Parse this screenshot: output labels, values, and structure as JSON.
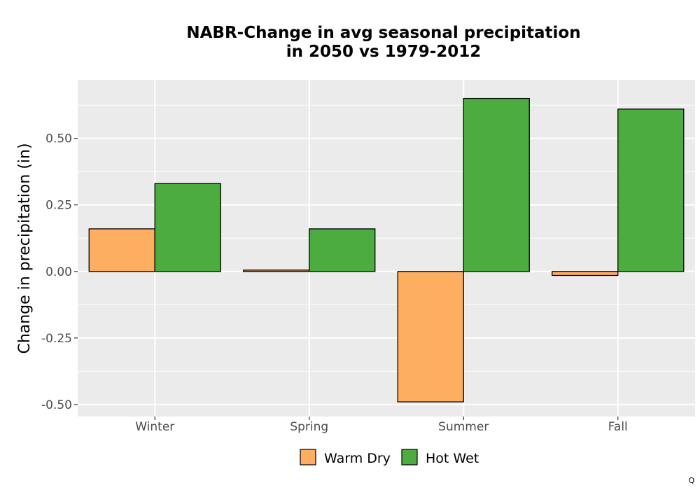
{
  "chart_data": {
    "type": "bar",
    "title_lines": [
      "NABR-Change in avg seasonal precipitation",
      "in 2050 vs 1979-2012"
    ],
    "xlabel": "",
    "ylabel": "Change in precipitation (in)",
    "categories": [
      "Winter",
      "Spring",
      "Summer",
      "Fall"
    ],
    "series": [
      {
        "name": "Warm Dry",
        "color": "#FDAE61",
        "values": [
          0.16,
          0.005,
          -0.49,
          -0.015
        ]
      },
      {
        "name": "Hot Wet",
        "color": "#4DAC3F",
        "values": [
          0.33,
          0.16,
          0.65,
          0.61
        ]
      }
    ],
    "ylim": [
      -0.545,
      0.72
    ],
    "yticks": [
      -0.5,
      -0.25,
      0.0,
      0.25,
      0.5
    ],
    "ytick_labels": [
      "-0.50",
      "-0.25",
      "0.00",
      "0.25",
      "0.50"
    ],
    "grid": true,
    "legend_position": "bottom",
    "panel_background": "#EBEBEB",
    "corner_mark": "Q"
  }
}
